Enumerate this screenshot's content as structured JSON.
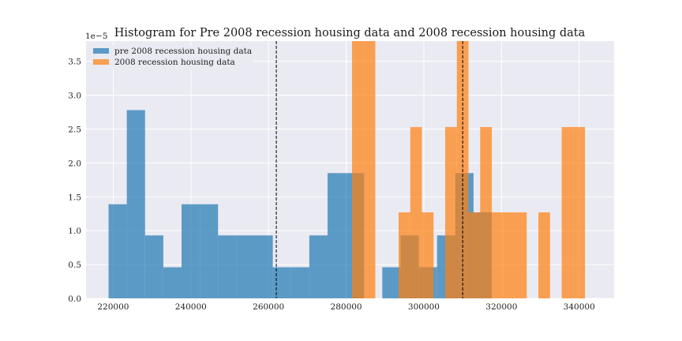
{
  "chart_data": {
    "type": "histogram",
    "title": "Histogram for Pre 2008 recession housing data and 2008 recession housing data",
    "xlabel": "",
    "ylabel": "",
    "y_offset_label": "1e−5",
    "xlim": [
      213000,
      349000
    ],
    "ylim": [
      0,
      3.8e-05
    ],
    "x_ticks": [
      220000,
      240000,
      260000,
      280000,
      300000,
      320000,
      340000
    ],
    "x_tick_labels": [
      "220000",
      "240000",
      "260000",
      "280000",
      "300000",
      "320000",
      "340000"
    ],
    "y_ticks": [
      0,
      5e-06,
      1e-05,
      1.5e-05,
      2e-05,
      2.5e-05,
      3e-05,
      3.5e-05
    ],
    "y_tick_labels": [
      "0.0",
      "0.5",
      "1.0",
      "1.5",
      "2.0",
      "2.5",
      "3.0",
      "3.5"
    ],
    "grid": true,
    "legend_position": "top-left",
    "series": [
      {
        "name": "pre 2008 recession housing data",
        "color": "#1f77b4",
        "bins": [
          {
            "x0": 218800,
            "x1": 223500,
            "density": 1.39e-05
          },
          {
            "x0": 223500,
            "x1": 228200,
            "density": 2.78e-05
          },
          {
            "x0": 228200,
            "x1": 232900,
            "density": 9.3e-06
          },
          {
            "x0": 232900,
            "x1": 237600,
            "density": 4.6e-06
          },
          {
            "x0": 237600,
            "x1": 242300,
            "density": 1.39e-05
          },
          {
            "x0": 242300,
            "x1": 247000,
            "density": 1.39e-05
          },
          {
            "x0": 247000,
            "x1": 251700,
            "density": 9.3e-06
          },
          {
            "x0": 251700,
            "x1": 256400,
            "density": 9.3e-06
          },
          {
            "x0": 256400,
            "x1": 261100,
            "density": 9.3e-06
          },
          {
            "x0": 261100,
            "x1": 265800,
            "density": 4.6e-06
          },
          {
            "x0": 265800,
            "x1": 270500,
            "density": 4.6e-06
          },
          {
            "x0": 270500,
            "x1": 275200,
            "density": 9.3e-06
          },
          {
            "x0": 275200,
            "x1": 279900,
            "density": 1.85e-05
          },
          {
            "x0": 279900,
            "x1": 284600,
            "density": 1.85e-05
          },
          {
            "x0": 289300,
            "x1": 294000,
            "density": 4.6e-06
          },
          {
            "x0": 294000,
            "x1": 298700,
            "density": 9.3e-06
          },
          {
            "x0": 298700,
            "x1": 303400,
            "density": 4.6e-06
          },
          {
            "x0": 303400,
            "x1": 308100,
            "density": 9.3e-06
          },
          {
            "x0": 308100,
            "x1": 312800,
            "density": 1.85e-05
          },
          {
            "x0": 312800,
            "x1": 317500,
            "density": 1.27e-05
          }
        ],
        "mean_line_x": 262000
      },
      {
        "name": "2008 recession housing data",
        "color": "#ff7f0e",
        "bins": [
          {
            "x0": 281500,
            "x1": 284500,
            "density": 3.8e-05
          },
          {
            "x0": 284500,
            "x1": 287500,
            "density": 3.8e-05
          },
          {
            "x0": 293500,
            "x1": 296500,
            "density": 1.27e-05
          },
          {
            "x0": 296500,
            "x1": 299500,
            "density": 2.53e-05
          },
          {
            "x0": 299500,
            "x1": 302500,
            "density": 1.27e-05
          },
          {
            "x0": 305500,
            "x1": 308500,
            "density": 2.53e-05
          },
          {
            "x0": 308500,
            "x1": 311500,
            "density": 3.8e-05
          },
          {
            "x0": 311500,
            "x1": 314500,
            "density": 1.27e-05
          },
          {
            "x0": 314500,
            "x1": 317500,
            "density": 2.53e-05
          },
          {
            "x0": 317500,
            "x1": 320500,
            "density": 1.27e-05
          },
          {
            "x0": 320500,
            "x1": 323500,
            "density": 1.27e-05
          },
          {
            "x0": 323500,
            "x1": 326500,
            "density": 1.27e-05
          },
          {
            "x0": 329500,
            "x1": 332500,
            "density": 1.27e-05
          },
          {
            "x0": 335500,
            "x1": 338500,
            "density": 2.53e-05
          },
          {
            "x0": 338500,
            "x1": 341500,
            "density": 2.53e-05
          }
        ],
        "mean_line_x": 310000
      }
    ],
    "colors": {
      "plot_background": "#eaeaf2",
      "grid": "#ffffff",
      "mean_line": "#000000"
    }
  }
}
